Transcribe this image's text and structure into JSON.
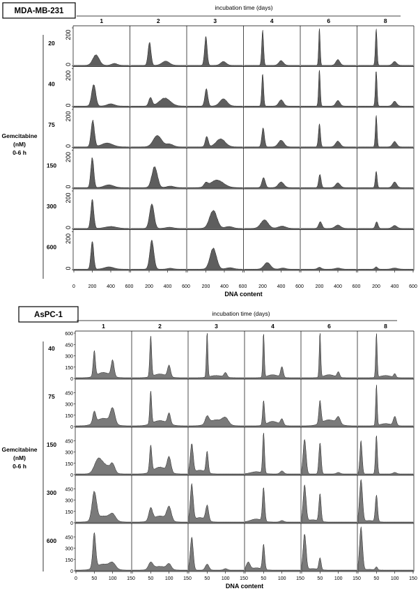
{
  "panels": [
    {
      "cell_line": "MDA-MB-231",
      "header": "incubation time (days)",
      "columns": [
        "1",
        "2",
        "3",
        "4",
        "6",
        "8"
      ],
      "treatment_label": [
        "Gemcitabine",
        "(nM)",
        "0-6 h"
      ],
      "rows": [
        "20",
        "40",
        "75",
        "150",
        "300",
        "600"
      ],
      "y_ticks": [
        "200",
        "0"
      ],
      "x_ticks": [
        "0",
        "200",
        "400",
        "600"
      ],
      "x_label": "DNA content",
      "x_max": 600,
      "y_max": 200
    },
    {
      "cell_line": "AsPC-1",
      "header": "incubation time (days)",
      "columns": [
        "1",
        "2",
        "3",
        "4",
        "6",
        "8"
      ],
      "treatment_label": [
        "Gemcitabine",
        "(nM)",
        "0-6 h"
      ],
      "rows": [
        "40",
        "75",
        "150",
        "300",
        "600"
      ],
      "y_ticks": [
        "600",
        "450",
        "300",
        "150",
        "0"
      ],
      "x_ticks": [
        "0",
        "50",
        "100",
        "150"
      ],
      "x_label": "DNA content",
      "x_max": 150,
      "y_max": 600
    }
  ],
  "chart_data": [
    {
      "type": "histogram-grid",
      "title": "MDA-MB-231",
      "xlabel": "DNA content",
      "ylabel": "Gemcitabine (nM) 0-6 h",
      "column_header": "incubation time (days)",
      "xlim": [
        0,
        600
      ],
      "ylim": [
        0,
        200
      ],
      "note": "peaks: [position, height, width] in DNA-content / count units",
      "cells": [
        [
          [
            [
              240,
              55,
              35
            ],
            [
              440,
              10,
              30
            ]
          ],
          [
            [
              205,
              120,
              16
            ],
            [
              380,
              22,
              40
            ]
          ],
          [
            [
              200,
              150,
              14
            ],
            [
              390,
              20,
              30
            ]
          ],
          [
            [
              200,
              185,
              10
            ],
            [
              400,
              25,
              25
            ]
          ],
          [
            [
              200,
              195,
              8
            ],
            [
              400,
              30,
              22
            ]
          ],
          [
            [
              200,
              190,
              9
            ],
            [
              400,
              20,
              22
            ]
          ]
        ],
        [
          [
            [
              215,
              115,
              22
            ],
            [
              400,
              12,
              40
            ]
          ],
          [
            [
              215,
              45,
              18
            ],
            [
              370,
              42,
              60
            ]
          ],
          [
            [
              205,
              90,
              16
            ],
            [
              390,
              38,
              40
            ]
          ],
          [
            [
              200,
              170,
              10
            ],
            [
              400,
              33,
              25
            ]
          ],
          [
            [
              200,
              190,
              9
            ],
            [
              400,
              30,
              22
            ]
          ],
          [
            [
              200,
              190,
              9
            ],
            [
              400,
              25,
              22
            ]
          ]
        ],
        [
          [
            [
              205,
              140,
              18
            ],
            [
              360,
              20,
              60
            ]
          ],
          [
            [
              290,
              60,
              45
            ],
            [
              420,
              15,
              40
            ]
          ],
          [
            [
              210,
              55,
              16
            ],
            [
              360,
              42,
              50
            ]
          ],
          [
            [
              205,
              100,
              14
            ],
            [
              400,
              35,
              30
            ]
          ],
          [
            [
              200,
              120,
              11
            ],
            [
              400,
              30,
              25
            ]
          ],
          [
            [
              200,
              165,
              9
            ],
            [
              400,
              28,
              22
            ]
          ]
        ],
        [
          [
            [
              200,
              160,
              16
            ],
            [
              380,
              15,
              50
            ]
          ],
          [
            [
              260,
              110,
              30
            ],
            [
              430,
              8,
              40
            ]
          ],
          [
            [
              320,
              40,
              70
            ],
            [
              200,
              20,
              20
            ]
          ],
          [
            [
              210,
              52,
              18
            ],
            [
              400,
              30,
              30
            ]
          ],
          [
            [
              205,
              70,
              13
            ],
            [
              400,
              25,
              25
            ]
          ],
          [
            [
              200,
              85,
              10
            ],
            [
              400,
              30,
              22
            ]
          ]
        ],
        [
          [
            [
              200,
              150,
              16
            ],
            [
              400,
              10,
              60
            ]
          ],
          [
            [
              230,
              130,
              24
            ],
            [
              420,
              6,
              40
            ]
          ],
          [
            [
              280,
              95,
              40
            ],
            [
              450,
              10,
              40
            ]
          ],
          [
            [
              220,
              45,
              40
            ],
            [
              410,
              12,
              40
            ]
          ],
          [
            [
              210,
              35,
              18
            ],
            [
              400,
              18,
              30
            ]
          ],
          [
            [
              205,
              35,
              14
            ],
            [
              400,
              15,
              25
            ]
          ]
        ],
        [
          [
            [
              200,
              150,
              15
            ],
            [
              380,
              12,
              50
            ]
          ],
          [
            [
              230,
              150,
              22
            ],
            [
              430,
              5,
              30
            ]
          ],
          [
            [
              280,
              110,
              35
            ],
            [
              460,
              8,
              40
            ]
          ],
          [
            [
              250,
              35,
              35
            ],
            [
              420,
              6,
              30
            ]
          ],
          [
            [
              200,
              10,
              20
            ],
            [
              400,
              6,
              30
            ]
          ],
          [
            [
              200,
              12,
              15
            ],
            [
              400,
              6,
              30
            ]
          ]
        ]
      ]
    },
    {
      "type": "histogram-grid",
      "title": "AsPC-1",
      "xlabel": "DNA content",
      "ylabel": "Gemcitabine (nM) 0-6 h",
      "column_header": "incubation time (days)",
      "xlim": [
        0,
        150
      ],
      "ylim": [
        0,
        600
      ],
      "note": "peaks: [position, height, width] in DNA-content / count units",
      "cells": [
        [
          [
            [
              50,
              330,
              3
            ],
            [
              100,
              210,
              4
            ],
            [
              75,
              70,
              18
            ]
          ],
          [
            [
              50,
              540,
              2.5
            ],
            [
              100,
              150,
              4
            ],
            [
              75,
              50,
              18
            ]
          ],
          [
            [
              50,
              600,
              2
            ],
            [
              100,
              60,
              4
            ],
            [
              75,
              30,
              18
            ]
          ],
          [
            [
              50,
              590,
              2
            ],
            [
              100,
              140,
              3.5
            ],
            [
              75,
              40,
              15
            ]
          ],
          [
            [
              50,
              590,
              2
            ],
            [
              100,
              70,
              3.5
            ],
            [
              75,
              40,
              15
            ]
          ],
          [
            [
              50,
              580,
              2
            ],
            [
              100,
              50,
              3
            ],
            [
              75,
              30,
              15
            ]
          ]
        ],
        [
          [
            [
              50,
              150,
              4
            ],
            [
              100,
              200,
              6
            ],
            [
              75,
              100,
              20
            ]
          ],
          [
            [
              50,
              440,
              2.5
            ],
            [
              100,
              140,
              4
            ],
            [
              75,
              70,
              20
            ]
          ],
          [
            [
              50,
              100,
              5
            ],
            [
              100,
              80,
              8
            ],
            [
              75,
              80,
              20
            ]
          ],
          [
            [
              50,
              330,
              2.5
            ],
            [
              100,
              80,
              4
            ],
            [
              75,
              60,
              15
            ]
          ],
          [
            [
              50,
              300,
              3
            ],
            [
              100,
              90,
              5
            ],
            [
              75,
              80,
              20
            ]
          ],
          [
            [
              50,
              540,
              2
            ],
            [
              100,
              120,
              4
            ],
            [
              75,
              30,
              15
            ]
          ]
        ],
        [
          [
            [
              60,
              160,
              10
            ],
            [
              100,
              100,
              6
            ],
            [
              80,
              110,
              15
            ]
          ],
          [
            [
              50,
              350,
              3
            ],
            [
              100,
              200,
              5
            ],
            [
              75,
              90,
              18
            ]
          ],
          [
            [
              8,
              390,
              4
            ],
            [
              50,
              280,
              3
            ],
            [
              30,
              50,
              15
            ]
          ],
          [
            [
              50,
              540,
              2.5
            ],
            [
              100,
              40,
              5
            ],
            [
              30,
              30,
              15
            ]
          ],
          [
            [
              8,
              460,
              4
            ],
            [
              50,
              420,
              3
            ],
            [
              100,
              20,
              5
            ]
          ],
          [
            [
              8,
              440,
              3
            ],
            [
              50,
              520,
              2.5
            ],
            [
              100,
              20,
              5
            ]
          ]
        ],
        [
          [
            [
              50,
              370,
              6
            ],
            [
              100,
              80,
              8
            ],
            [
              75,
              80,
              20
            ]
          ],
          [
            [
              50,
              160,
              5
            ],
            [
              100,
              180,
              6
            ],
            [
              75,
              80,
              18
            ]
          ],
          [
            [
              8,
              480,
              4
            ],
            [
              50,
              200,
              4
            ],
            [
              30,
              60,
              15
            ]
          ],
          [
            [
              50,
              440,
              3
            ],
            [
              100,
              20,
              5
            ],
            [
              30,
              40,
              15
            ]
          ],
          [
            [
              8,
              480,
              4
            ],
            [
              50,
              360,
              3
            ],
            [
              30,
              30,
              15
            ]
          ],
          [
            [
              8,
              570,
              4
            ],
            [
              50,
              350,
              3
            ],
            [
              30,
              20,
              15
            ]
          ]
        ],
        [
          [
            [
              50,
              450,
              4
            ],
            [
              100,
              70,
              8
            ],
            [
              75,
              80,
              20
            ]
          ],
          [
            [
              50,
              90,
              6
            ],
            [
              100,
              70,
              6
            ],
            [
              75,
              50,
              18
            ]
          ],
          [
            [
              8,
              440,
              4
            ],
            [
              50,
              80,
              5
            ],
            [
              100,
              20,
              5
            ]
          ],
          [
            [
              8,
              100,
              5
            ],
            [
              50,
              330,
              3
            ],
            [
              30,
              30,
              15
            ]
          ],
          [
            [
              8,
              480,
              4
            ],
            [
              50,
              160,
              3
            ],
            [
              30,
              20,
              15
            ]
          ],
          [
            [
              8,
              560,
              4
            ],
            [
              50,
              40,
              3
            ],
            [
              30,
              10,
              15
            ]
          ]
        ]
      ]
    }
  ]
}
